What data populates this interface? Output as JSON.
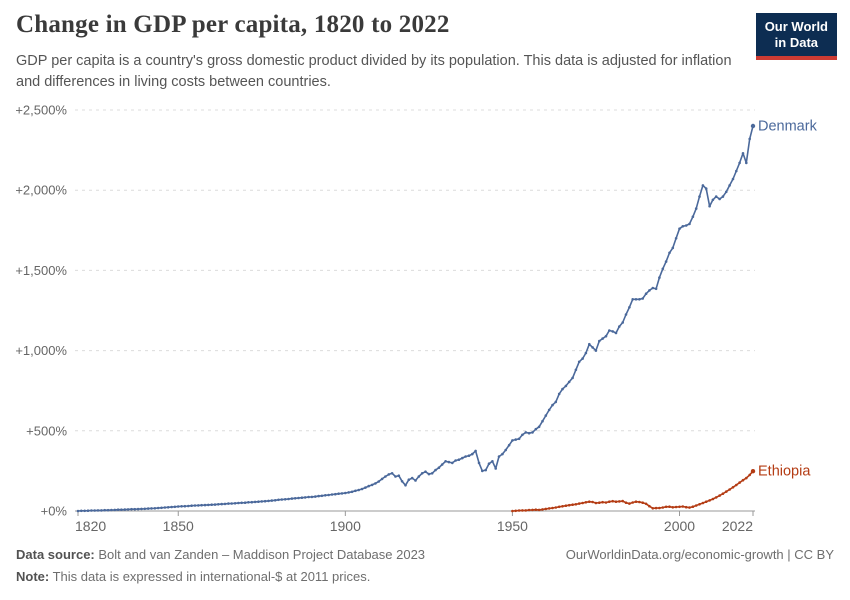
{
  "header": {
    "title": "Change in GDP per capita, 1820 to 2022",
    "subtitle": "GDP per capita is a country's gross domestic product divided by its population. This data is adjusted for inflation and differences in living costs between countries.",
    "logo": {
      "line1": "Our World",
      "line2": "in Data",
      "bg": "#0d2d52",
      "stripe": "#cc3b33"
    }
  },
  "footer": {
    "source_label": "Data source:",
    "source_text": "Bolt and van Zanden – Maddison Project Database 2023",
    "note_label": "Note:",
    "note_text": "This data is expressed in international-$ at 2011 prices.",
    "link": "OurWorldinData.org/economic-growth | CC BY"
  },
  "palette": {
    "grid": "#dcdcdc",
    "axis": "#999999",
    "tick_label": "#666666"
  },
  "chart_data": {
    "type": "line",
    "title": "Change in GDP per capita, 1820 to 2022",
    "xlabel": "",
    "ylabel": "",
    "xlim": [
      1820,
      2022
    ],
    "ylim": [
      0,
      2500
    ],
    "grid": "horizontal-dashed",
    "legend_position": "end-of-line-labels",
    "yticks": [
      {
        "value": 0,
        "label": "+0%"
      },
      {
        "value": 500,
        "label": "+500%"
      },
      {
        "value": 1000,
        "label": "+1,000%"
      },
      {
        "value": 1500,
        "label": "+1,500%"
      },
      {
        "value": 2000,
        "label": "+2,000%"
      },
      {
        "value": 2500,
        "label": "+2,500%"
      }
    ],
    "xticks": [
      {
        "value": 1820,
        "label": "1820"
      },
      {
        "value": 1850,
        "label": "1850"
      },
      {
        "value": 1900,
        "label": "1900"
      },
      {
        "value": 1950,
        "label": "1950"
      },
      {
        "value": 2000,
        "label": "2000"
      },
      {
        "value": 2022,
        "label": "2022"
      }
    ],
    "series": [
      {
        "name": "Denmark",
        "color": "#4b699b",
        "start_year": 1820,
        "step": 1,
        "values": [
          0,
          1,
          1,
          2,
          3,
          3,
          4,
          4,
          5,
          5,
          6,
          7,
          8,
          8,
          9,
          10,
          11,
          11,
          12,
          13,
          14,
          15,
          16,
          17,
          19,
          20,
          22,
          23,
          25,
          26,
          28,
          29,
          30,
          31,
          33,
          34,
          35,
          36,
          37,
          38,
          39,
          40,
          42,
          43,
          44,
          46,
          47,
          48,
          50,
          51,
          52,
          54,
          55,
          57,
          58,
          60,
          61,
          63,
          65,
          67,
          70,
          72,
          73,
          75,
          77,
          79,
          81,
          83,
          85,
          87,
          88,
          90,
          93,
          95,
          98,
          100,
          103,
          105,
          108,
          110,
          112,
          116,
          120,
          126,
          131,
          137,
          146,
          155,
          163,
          172,
          184,
          200,
          215,
          228,
          235,
          215,
          220,
          185,
          160,
          195,
          205,
          190,
          215,
          235,
          245,
          230,
          235,
          255,
          270,
          290,
          310,
          305,
          300,
          315,
          320,
          330,
          340,
          345,
          355,
          375,
          300,
          250,
          255,
          295,
          310,
          265,
          340,
          355,
          380,
          410,
          440,
          445,
          450,
          475,
          490,
          485,
          490,
          510,
          525,
          560,
          595,
          630,
          660,
          680,
          730,
          760,
          780,
          805,
          830,
          880,
          930,
          950,
          985,
          1040,
          1020,
          1000,
          1060,
          1075,
          1090,
          1125,
          1120,
          1110,
          1150,
          1175,
          1225,
          1270,
          1320,
          1320,
          1320,
          1325,
          1355,
          1375,
          1390,
          1385,
          1455,
          1510,
          1555,
          1610,
          1640,
          1700,
          1760,
          1775,
          1780,
          1790,
          1835,
          1885,
          1960,
          2030,
          2010,
          1900,
          1940,
          1960,
          1945,
          1960,
          1990,
          2030,
          2070,
          2120,
          2170,
          2230,
          2170,
          2320,
          2400
        ]
      },
      {
        "name": "Ethiopia",
        "color": "#b43c14",
        "start_year": 1950,
        "step": 1,
        "values": [
          0,
          1,
          3,
          4,
          4,
          6,
          7,
          8,
          7,
          10,
          13,
          16,
          19,
          22,
          26,
          29,
          33,
          36,
          39,
          42,
          46,
          50,
          54,
          58,
          56,
          50,
          52,
          55,
          53,
          58,
          61,
          58,
          60,
          62,
          52,
          46,
          53,
          58,
          56,
          52,
          45,
          30,
          17,
          18,
          19,
          22,
          26,
          27,
          23,
          25,
          26,
          28,
          24,
          21,
          27,
          34,
          42,
          50,
          58,
          66,
          75,
          85,
          96,
          108,
          121,
          134,
          148,
          162,
          177,
          192,
          205,
          225,
          248
        ]
      }
    ]
  }
}
